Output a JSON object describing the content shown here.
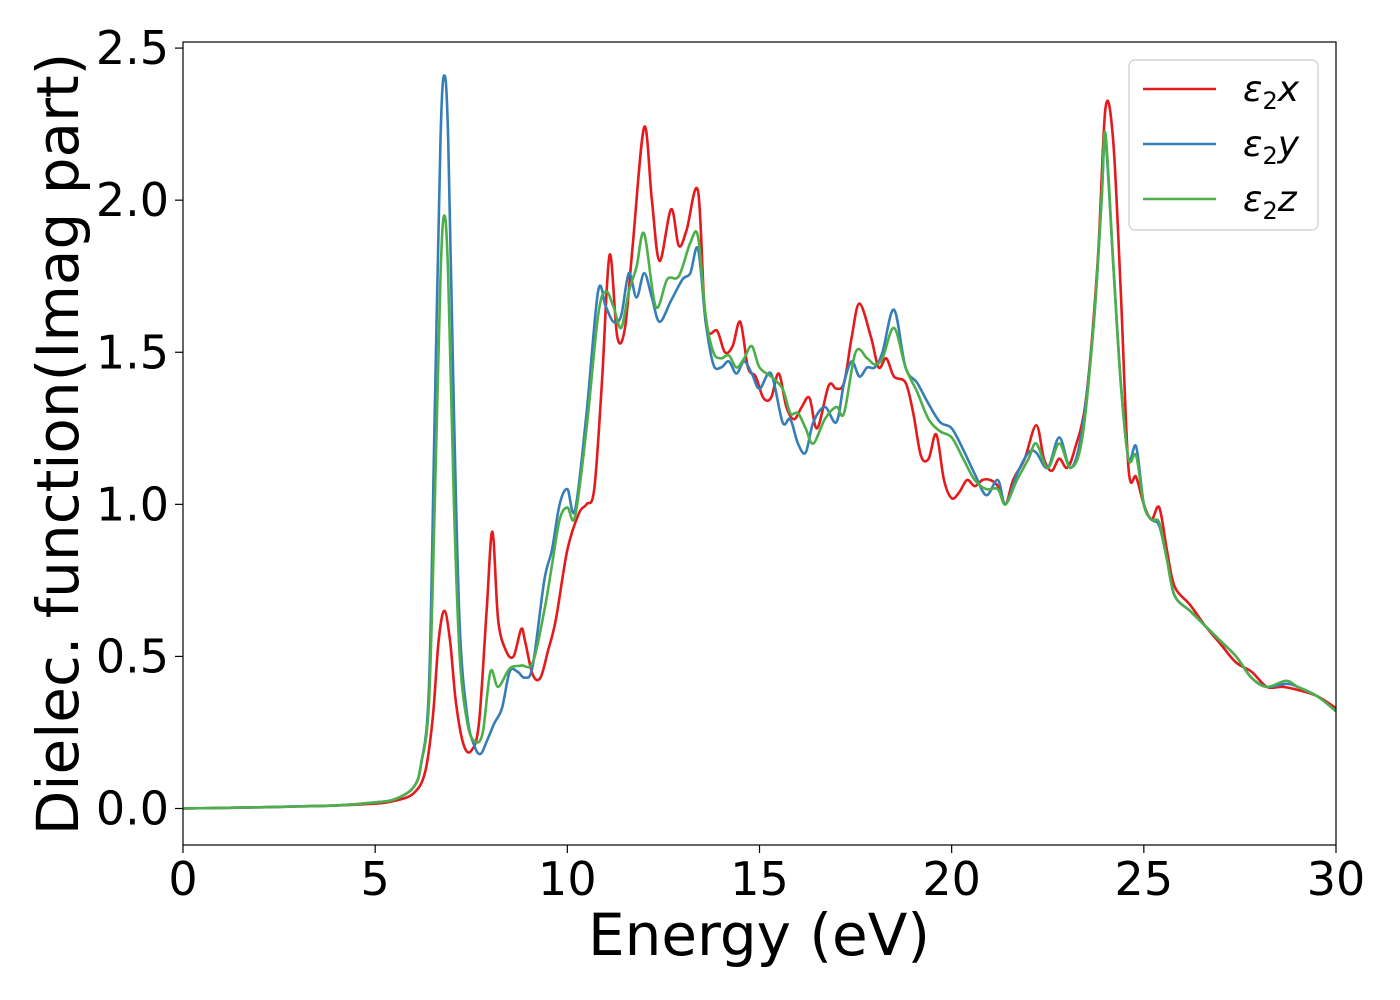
{
  "chart_data": {
    "type": "line",
    "xlabel": "Energy (eV)",
    "ylabel": "Dielec. function(Imag part)",
    "xlim": [
      0,
      30
    ],
    "ylim": [
      -0.12,
      2.52
    ],
    "xticks": [
      0,
      5,
      10,
      15,
      20,
      25,
      30
    ],
    "xtick_labels": [
      "0",
      "5",
      "10",
      "15",
      "20",
      "25",
      "30"
    ],
    "yticks": [
      0.0,
      0.5,
      1.0,
      1.5,
      2.0,
      2.5
    ],
    "ytick_labels": [
      "0.0",
      "0.5",
      "1.0",
      "1.5",
      "2.0",
      "2.5"
    ],
    "grid": false,
    "legend_position": "top-right",
    "series": [
      {
        "name": "ε₂x",
        "legend_main": "ε",
        "legend_sub": "2",
        "legend_var": "x",
        "color": "#e41a1c",
        "x": [
          0,
          1,
          2,
          3,
          4,
          5,
          5.5,
          6,
          6.3,
          6.5,
          6.65,
          6.8,
          6.95,
          7.1,
          7.3,
          7.5,
          7.7,
          7.9,
          8.05,
          8.2,
          8.4,
          8.6,
          8.8,
          8.9,
          9.1,
          9.3,
          9.5,
          9.7,
          10.0,
          10.3,
          10.5,
          10.7,
          10.9,
          11.1,
          11.3,
          11.5,
          11.7,
          12.0,
          12.2,
          12.4,
          12.7,
          12.9,
          13.1,
          13.4,
          13.6,
          13.9,
          14.1,
          14.3,
          14.5,
          14.7,
          14.9,
          15.1,
          15.3,
          15.5,
          15.7,
          15.9,
          16.1,
          16.3,
          16.5,
          16.8,
          17.0,
          17.2,
          17.4,
          17.6,
          17.9,
          18.1,
          18.3,
          18.5,
          18.8,
          19.0,
          19.2,
          19.4,
          19.6,
          19.8,
          20.0,
          20.2,
          20.4,
          20.6,
          20.8,
          21.0,
          21.2,
          21.4,
          21.6,
          21.9,
          22.2,
          22.4,
          22.6,
          22.8,
          23.0,
          23.2,
          23.5,
          23.8,
          24.0,
          24.2,
          24.4,
          24.6,
          24.8,
          25.0,
          25.2,
          25.4,
          25.6,
          25.8,
          26.2,
          26.6,
          27.0,
          27.4,
          27.8,
          28.2,
          28.6,
          29.0,
          29.5,
          30.0
        ],
        "y": [
          0.0,
          0.002,
          0.004,
          0.007,
          0.01,
          0.016,
          0.025,
          0.05,
          0.12,
          0.3,
          0.55,
          0.65,
          0.55,
          0.35,
          0.21,
          0.19,
          0.28,
          0.65,
          0.91,
          0.62,
          0.52,
          0.5,
          0.59,
          0.55,
          0.44,
          0.43,
          0.52,
          0.62,
          0.85,
          0.97,
          1.0,
          1.05,
          1.4,
          1.82,
          1.55,
          1.58,
          1.85,
          2.24,
          2.0,
          1.8,
          1.97,
          1.85,
          1.9,
          2.03,
          1.6,
          1.57,
          1.5,
          1.52,
          1.6,
          1.45,
          1.42,
          1.35,
          1.35,
          1.43,
          1.32,
          1.28,
          1.32,
          1.35,
          1.25,
          1.39,
          1.38,
          1.4,
          1.55,
          1.66,
          1.55,
          1.45,
          1.48,
          1.42,
          1.4,
          1.3,
          1.16,
          1.15,
          1.23,
          1.08,
          1.02,
          1.04,
          1.08,
          1.06,
          1.08,
          1.08,
          1.06,
          1.0,
          1.08,
          1.15,
          1.26,
          1.15,
          1.11,
          1.15,
          1.12,
          1.18,
          1.35,
          1.8,
          2.3,
          2.2,
          1.7,
          1.12,
          1.09,
          1.0,
          0.95,
          0.99,
          0.85,
          0.73,
          0.67,
          0.6,
          0.54,
          0.48,
          0.45,
          0.4,
          0.4,
          0.39,
          0.37,
          0.33
        ]
      },
      {
        "name": "ε₂y",
        "legend_main": "ε",
        "legend_sub": "2",
        "legend_var": "y",
        "color": "#377eb8",
        "x": [
          0,
          1,
          2,
          3,
          4,
          5,
          5.5,
          6,
          6.2,
          6.4,
          6.55,
          6.7,
          6.8,
          6.9,
          7.05,
          7.2,
          7.4,
          7.6,
          7.75,
          7.9,
          8.1,
          8.3,
          8.5,
          8.7,
          8.9,
          9.1,
          9.4,
          9.6,
          9.8,
          10.0,
          10.2,
          10.5,
          10.8,
          11.0,
          11.2,
          11.4,
          11.6,
          11.8,
          12.0,
          12.2,
          12.4,
          12.7,
          13.0,
          13.2,
          13.4,
          13.6,
          13.8,
          14.0,
          14.2,
          14.4,
          14.6,
          14.8,
          15.0,
          15.3,
          15.6,
          15.8,
          16.0,
          16.2,
          16.4,
          16.7,
          17.0,
          17.2,
          17.4,
          17.6,
          17.8,
          18.0,
          18.2,
          18.5,
          18.8,
          19.1,
          19.4,
          19.7,
          20.0,
          20.3,
          20.6,
          20.9,
          21.2,
          21.4,
          21.7,
          22.0,
          22.2,
          22.5,
          22.8,
          23.1,
          23.4,
          23.7,
          23.9,
          24.0,
          24.2,
          24.4,
          24.6,
          24.8,
          25.0,
          25.2,
          25.4,
          25.6,
          25.8,
          26.2,
          26.6,
          27.0,
          27.4,
          27.8,
          28.2,
          28.7,
          29.0,
          29.5,
          30.0
        ],
        "y": [
          0.0,
          0.002,
          0.004,
          0.007,
          0.01,
          0.02,
          0.03,
          0.07,
          0.15,
          0.4,
          1.3,
          2.2,
          2.41,
          2.2,
          1.3,
          0.6,
          0.3,
          0.2,
          0.18,
          0.22,
          0.28,
          0.33,
          0.45,
          0.45,
          0.43,
          0.47,
          0.75,
          0.85,
          1.0,
          1.05,
          0.98,
          1.3,
          1.7,
          1.65,
          1.6,
          1.62,
          1.76,
          1.68,
          1.76,
          1.68,
          1.6,
          1.67,
          1.74,
          1.76,
          1.84,
          1.6,
          1.46,
          1.45,
          1.47,
          1.43,
          1.47,
          1.43,
          1.38,
          1.43,
          1.27,
          1.28,
          1.2,
          1.17,
          1.27,
          1.32,
          1.27,
          1.4,
          1.47,
          1.42,
          1.45,
          1.45,
          1.5,
          1.64,
          1.45,
          1.4,
          1.33,
          1.27,
          1.25,
          1.18,
          1.1,
          1.03,
          1.08,
          1.0,
          1.1,
          1.17,
          1.17,
          1.12,
          1.22,
          1.12,
          1.25,
          1.6,
          2.0,
          2.2,
          1.8,
          1.4,
          1.15,
          1.19,
          1.0,
          0.95,
          0.93,
          0.82,
          0.7,
          0.65,
          0.6,
          0.55,
          0.5,
          0.43,
          0.4,
          0.41,
          0.4,
          0.37,
          0.32
        ]
      },
      {
        "name": "ε₂z",
        "legend_main": "ε",
        "legend_sub": "2",
        "legend_var": "z",
        "color": "#4daf4a",
        "x": [
          0,
          1,
          2,
          3,
          4,
          5,
          5.5,
          6,
          6.2,
          6.4,
          6.55,
          6.7,
          6.8,
          6.9,
          7.05,
          7.2,
          7.4,
          7.6,
          7.8,
          8.0,
          8.2,
          8.5,
          8.8,
          9.1,
          9.4,
          9.6,
          9.8,
          10.0,
          10.2,
          10.5,
          10.8,
          11.0,
          11.2,
          11.4,
          11.6,
          11.8,
          12.0,
          12.3,
          12.6,
          12.9,
          13.2,
          13.4,
          13.6,
          13.8,
          14.0,
          14.2,
          14.4,
          14.6,
          14.8,
          15.0,
          15.3,
          15.6,
          15.8,
          16.0,
          16.2,
          16.4,
          16.7,
          17.0,
          17.2,
          17.5,
          17.8,
          18.0,
          18.2,
          18.5,
          18.8,
          19.1,
          19.4,
          19.7,
          20.0,
          20.3,
          20.6,
          20.9,
          21.2,
          21.4,
          21.7,
          22.0,
          22.2,
          22.5,
          22.8,
          23.1,
          23.4,
          23.7,
          23.9,
          24.0,
          24.2,
          24.4,
          24.6,
          24.8,
          25.0,
          25.2,
          25.4,
          25.6,
          25.8,
          26.2,
          26.6,
          27.0,
          27.4,
          27.8,
          28.2,
          28.7,
          29.0,
          29.5,
          30.0
        ],
        "y": [
          0.0,
          0.002,
          0.004,
          0.007,
          0.01,
          0.02,
          0.03,
          0.07,
          0.15,
          0.35,
          1.0,
          1.75,
          1.95,
          1.75,
          1.0,
          0.5,
          0.28,
          0.22,
          0.25,
          0.45,
          0.4,
          0.46,
          0.47,
          0.48,
          0.65,
          0.8,
          0.95,
          0.99,
          0.96,
          1.25,
          1.62,
          1.7,
          1.65,
          1.58,
          1.7,
          1.78,
          1.89,
          1.65,
          1.74,
          1.75,
          1.86,
          1.88,
          1.62,
          1.5,
          1.48,
          1.49,
          1.45,
          1.48,
          1.52,
          1.45,
          1.42,
          1.38,
          1.3,
          1.3,
          1.25,
          1.2,
          1.28,
          1.32,
          1.3,
          1.5,
          1.48,
          1.46,
          1.48,
          1.58,
          1.45,
          1.37,
          1.28,
          1.24,
          1.22,
          1.15,
          1.08,
          1.05,
          1.05,
          1.0,
          1.08,
          1.15,
          1.2,
          1.12,
          1.2,
          1.12,
          1.22,
          1.6,
          2.0,
          2.22,
          1.8,
          1.4,
          1.15,
          1.16,
          1.0,
          0.95,
          0.94,
          0.82,
          0.7,
          0.65,
          0.6,
          0.55,
          0.5,
          0.43,
          0.4,
          0.42,
          0.4,
          0.37,
          0.32
        ]
      }
    ]
  }
}
